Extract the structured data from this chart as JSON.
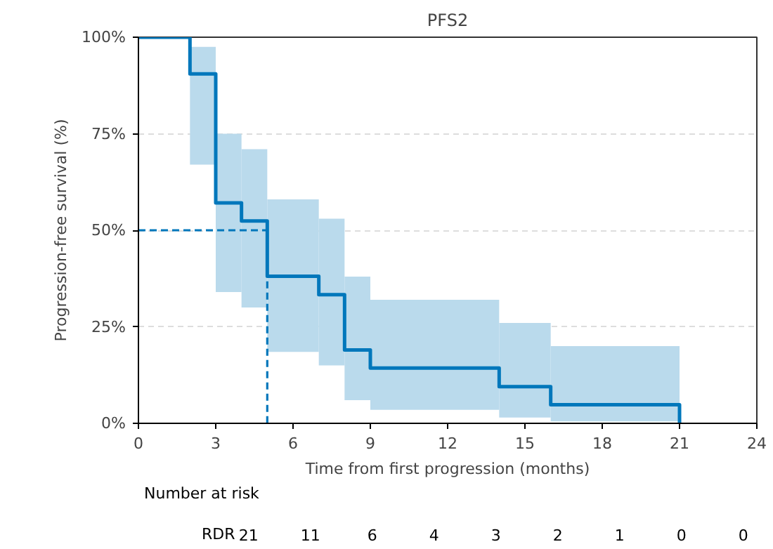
{
  "chart_data": {
    "type": "step",
    "title": "PFS2",
    "xlabel": "Time from first progression (months)",
    "ylabel": "Progression-free survival (%)",
    "xlim": [
      0,
      24
    ],
    "xticks": [
      0,
      3,
      6,
      9,
      12,
      15,
      18,
      21,
      24
    ],
    "ylim": [
      0,
      100
    ],
    "yticks": [
      {
        "value": 0,
        "label": "0%"
      },
      {
        "value": 25,
        "label": "25%"
      },
      {
        "value": 50,
        "label": "50%"
      },
      {
        "value": 75,
        "label": "75%"
      },
      {
        "value": 100,
        "label": "100%"
      }
    ],
    "grid": "y",
    "series": [
      {
        "color": "#0077bb",
        "x": [
          0,
          2,
          3,
          4,
          5,
          7,
          8,
          9,
          14,
          16,
          21
        ],
        "values": [
          100,
          90.5,
          57.1,
          52.4,
          38.1,
          33.3,
          19,
          14.3,
          9.5,
          4.8,
          0
        ],
        "lower": [
          null,
          67,
          34,
          30,
          18.5,
          15,
          6,
          3.5,
          1.5,
          0.5,
          0.5
        ],
        "upper": [
          null,
          97.5,
          75,
          71,
          58,
          53,
          38,
          32,
          26,
          20,
          20
        ]
      },
      {
        "type": "line",
        "color": "#0077bb",
        "line_style": "dashed",
        "x": [
          0,
          5,
          5
        ],
        "values": [
          50,
          50,
          0
        ]
      }
    ],
    "annotations": [
      "Number at risk",
      "RDR",
      "21",
      "11",
      "6",
      "4",
      "3",
      "2",
      "1",
      "0",
      "0"
    ]
  }
}
